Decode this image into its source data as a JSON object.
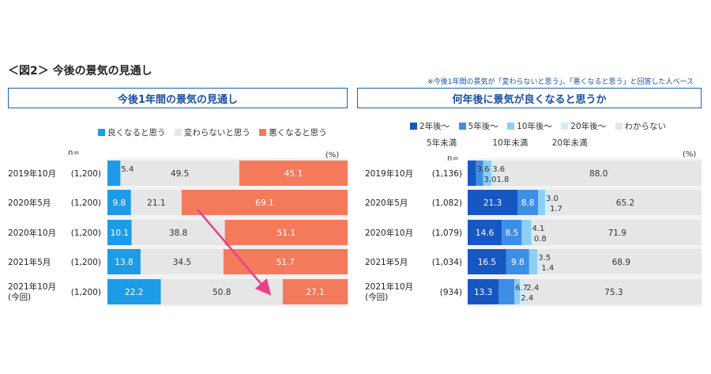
{
  "figure": {
    "title": "＜図2＞ 今後の景気の見通し",
    "note": "※今後1年間の景気が「変わらないと思う」、「悪くなると思う」と回答した人ベース"
  },
  "chart_data": [
    {
      "type": "bar",
      "stacked": true,
      "orientation": "horizontal",
      "title": "今後1年間の景気の見通し",
      "n_label": "n=",
      "unit_label": "(%)",
      "categories": [
        "2019年10月",
        "2020年5月",
        "2020年10月",
        "2021年5月",
        "2021年10月"
      ],
      "category_sublabels": [
        "",
        "",
        "",
        "",
        "(今回)"
      ],
      "n_values": [
        "(1,200)",
        "(1,200)",
        "(1,200)",
        "(1,200)",
        "(1,200)"
      ],
      "xlim": [
        0,
        100
      ],
      "series": [
        {
          "name": "良くなると思う",
          "color": "#1e9be6",
          "values": [
            5.4,
            9.8,
            10.1,
            13.8,
            22.2
          ]
        },
        {
          "name": "変わらないと思う",
          "color": "#e6e6e6",
          "values": [
            49.5,
            21.1,
            38.8,
            34.5,
            50.8
          ]
        },
        {
          "name": "悪くなると思う",
          "color": "#f47a5c",
          "values": [
            45.1,
            69.1,
            51.1,
            51.7,
            27.1
          ]
        }
      ],
      "annotation": {
        "type": "arrow",
        "color": "#e8418c",
        "from_category": "2020年5月",
        "to_category": "2021年10月"
      }
    },
    {
      "type": "bar",
      "stacked": true,
      "orientation": "horizontal",
      "title": "何年後に景気が良くなると思うか",
      "n_label": "n=",
      "unit_label": "(%)",
      "categories": [
        "2019年10月",
        "2020年5月",
        "2020年10月",
        "2021年5月",
        "2021年10月"
      ],
      "category_sublabels": [
        "",
        "",
        "",
        "",
        "(今回)"
      ],
      "n_values": [
        "(1,136)",
        "(1,082)",
        "(1,079)",
        "(1,034)",
        "(934)"
      ],
      "xlim": [
        0,
        100
      ],
      "series": [
        {
          "name": "2年後～",
          "sublabel": "5年未満",
          "color": "#1757c2",
          "values": [
            3.6,
            21.3,
            14.6,
            16.5,
            13.3
          ]
        },
        {
          "name": "5年後～",
          "sublabel": "10年未満",
          "color": "#3d8ee6",
          "values": [
            3.0,
            8.8,
            8.5,
            9.8,
            6.7
          ]
        },
        {
          "name": "10年後～",
          "sublabel": "20年未満",
          "color": "#8ccff2",
          "values": [
            3.6,
            3.0,
            4.1,
            3.5,
            2.4
          ]
        },
        {
          "name": "20年後～",
          "sublabel": "",
          "color": "#d3edf8",
          "values": [
            1.8,
            1.7,
            0.8,
            1.4,
            2.4
          ]
        },
        {
          "name": "わからない",
          "sublabel": "",
          "color": "#e6e6e6",
          "values": [
            88.0,
            65.2,
            71.9,
            68.9,
            75.3
          ]
        }
      ]
    }
  ]
}
